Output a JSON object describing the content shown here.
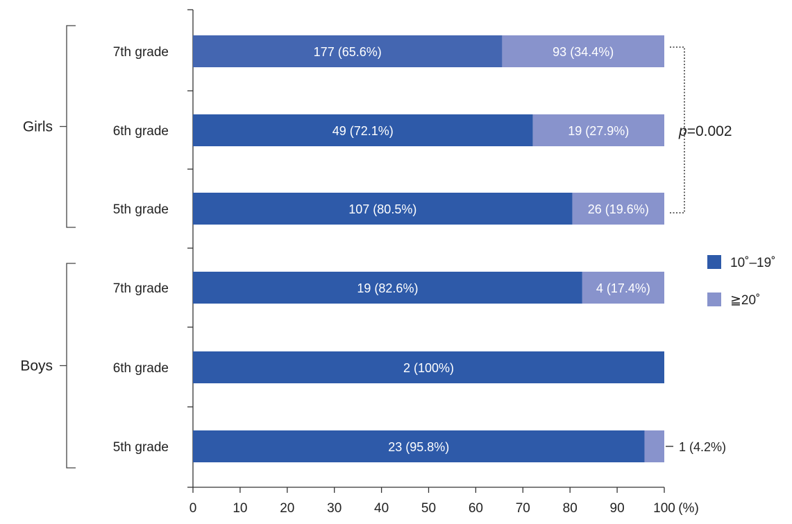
{
  "chart_data": {
    "type": "bar",
    "orientation": "horizontal",
    "stacked": true,
    "categories": [
      "7th grade",
      "6th grade",
      "5th grade",
      "7th grade",
      "6th grade",
      "5th grade"
    ],
    "groups": [
      {
        "name": "Girls",
        "rows": [
          0,
          1,
          2
        ]
      },
      {
        "name": "Boys",
        "rows": [
          3,
          4,
          5
        ]
      }
    ],
    "series": [
      {
        "name": "10˚–19˚",
        "color": "#2e5aa9",
        "values": [
          65.6,
          72.1,
          80.5,
          82.6,
          100,
          95.8
        ],
        "labels": [
          "177 (65.6%)",
          "49 (72.1%)",
          "107 (80.5%)",
          "19 (82.6%)",
          "2 (100%)",
          "23 (95.8%)"
        ]
      },
      {
        "name": "≧20˚",
        "color": "#8893cc",
        "values": [
          34.4,
          27.9,
          19.6,
          17.4,
          0,
          4.2
        ],
        "labels": [
          "93 (34.4%)",
          "19 (27.9%)",
          "26 (19.6%)",
          "4 (17.4%)",
          "",
          "1 (4.2%)"
        ]
      }
    ],
    "top_bar_color": "#4466b1",
    "xlim": [
      0,
      100
    ],
    "xticks": [
      0,
      10,
      20,
      30,
      40,
      50,
      60,
      70,
      80,
      90,
      100
    ],
    "xunit": "(%)",
    "annotation": {
      "p_letter": "p",
      "p_value": "=0.002",
      "brackets_rows": [
        0,
        2
      ]
    },
    "legend": {
      "position": "right"
    },
    "grid": false
  }
}
